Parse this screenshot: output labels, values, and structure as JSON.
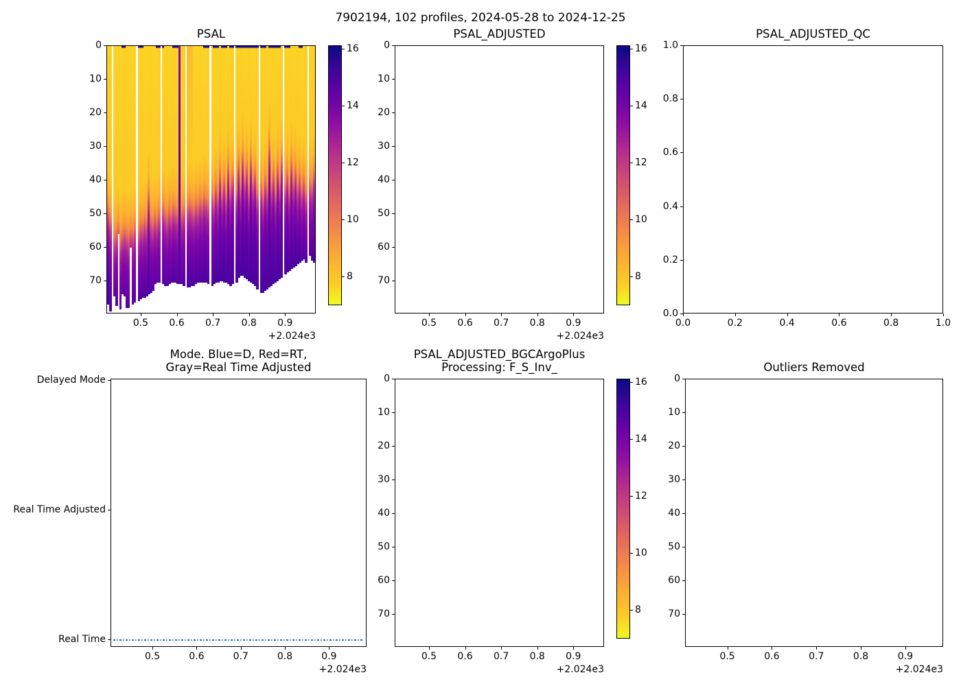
{
  "suptitle": "7902194, 102 profiles, 2024-05-28 to 2024-12-25",
  "palette": {
    "plasma_top_to_bottom": [
      "#0d0887",
      "#41049d",
      "#6a00a8",
      "#8f0da4",
      "#b12a90",
      "#cc4778",
      "#e16462",
      "#f2844b",
      "#fca636",
      "#fcce25",
      "#f0f921"
    ],
    "surface_yellow": "#fcd225",
    "surface_yellow_alt": "#fbd026",
    "orange_surface": "#fcbb31",
    "dark_surface_cap": "#1e0b8c",
    "deep_purple": "#4b03a0",
    "anomaly_gradient": [
      "#8a0ba5",
      "#6a00a8",
      "#52019f"
    ],
    "mode_line_blue": "#1f77b4"
  },
  "chart_data": [
    {
      "id": "psal",
      "type": "heatmap",
      "title": "PSAL",
      "x_range": [
        2024.405,
        2024.985
      ],
      "x_ticks": {
        "values": [
          2024.5,
          2024.6,
          2024.7,
          2024.8,
          2024.9
        ],
        "labels": [
          "0.5",
          "0.6",
          "0.7",
          "0.8",
          "0.9"
        ]
      },
      "x_offset_label": "+2.024e3",
      "y_range": [
        0,
        79.9
      ],
      "y_ticks": {
        "values": [
          0,
          10,
          20,
          30,
          40,
          50,
          60,
          70
        ],
        "labels": [
          "0",
          "10",
          "20",
          "30",
          "40",
          "50",
          "60",
          "70"
        ]
      },
      "colorbar": {
        "vmin": 7.0,
        "vmax": 16.12,
        "tick_values": [
          8,
          10,
          12,
          14,
          16
        ],
        "tick_labels": [
          "8",
          "10",
          "12",
          "14",
          "16"
        ]
      },
      "heatmap": {
        "n_profiles": 102,
        "surface_value_psu": 7.4,
        "deep_value_psu": 14.0,
        "anomaly_value_psu": 13.5,
        "gap_columns": [
          2,
          14,
          26,
          38,
          50,
          62,
          74,
          86,
          98
        ],
        "anomaly_columns": [
          35
        ],
        "orange_columns": [
          39,
          40,
          41
        ],
        "dark_surface_cap_columns": [
          7,
          8,
          15,
          16,
          17,
          24,
          25,
          27,
          32,
          33,
          34,
          47,
          48,
          49,
          52,
          53,
          54,
          56,
          57,
          58,
          60,
          61,
          63,
          64,
          65,
          66,
          67,
          68,
          69,
          70,
          71,
          72,
          73,
          75,
          76,
          77,
          79,
          80,
          81,
          82,
          83,
          84,
          87,
          88,
          89,
          94,
          95
        ],
        "bottom_depths": [
          77,
          79,
          null,
          74.5,
          77.5,
          56,
          78.5,
          74,
          74.5,
          78,
          78,
          60,
          77,
          76.5,
          null,
          76,
          75.5,
          75,
          75,
          74.5,
          74,
          73.5,
          73,
          71,
          70.5,
          70.5,
          null,
          71,
          71.5,
          71.5,
          71,
          70.5,
          70.5,
          70.5,
          71,
          71,
          71,
          71.5,
          null,
          72,
          72,
          71.5,
          71.5,
          71,
          70.5,
          70.5,
          70.5,
          70.5,
          70.5,
          71,
          null,
          71.5,
          71,
          70.5,
          70.5,
          70,
          70,
          70.5,
          70.5,
          71,
          71.5,
          71,
          null,
          70.5,
          69,
          68.5,
          68.5,
          69,
          69.5,
          70,
          70.5,
          71,
          71.5,
          72.5,
          null,
          73.5,
          73.5,
          73,
          72.5,
          72,
          71.5,
          71,
          70.5,
          70,
          69.5,
          69,
          null,
          68,
          67.5,
          67,
          66.5,
          66,
          65.5,
          65,
          64.5,
          64,
          63.5,
          64.5,
          null,
          62.5,
          64,
          64.5
        ],
        "transition_depths": [
          49,
          52,
          null,
          57,
          56,
          54,
          58,
          56,
          55,
          56,
          57,
          55,
          56,
          54,
          null,
          55,
          53,
          54,
          52,
          53,
          44,
          52,
          53,
          51,
          52,
          50,
          null,
          48,
          50,
          51,
          49,
          50,
          48,
          49,
          50,
          null,
          50,
          49,
          null,
          48,
          47,
          48,
          49,
          47,
          48,
          46,
          47,
          45,
          46,
          47,
          null,
          44,
          46,
          42,
          45,
          38,
          44,
          40,
          45,
          36,
          43,
          39,
          null,
          44,
          35,
          42,
          33,
          40,
          36,
          43,
          34,
          41,
          38,
          44,
          null,
          42,
          45,
          40,
          43,
          30,
          42,
          38,
          44,
          36,
          41,
          34,
          null,
          42,
          38,
          43,
          35,
          41,
          37,
          42,
          39,
          43,
          40,
          44,
          null,
          41,
          42,
          38
        ]
      }
    },
    {
      "id": "psal_adjusted",
      "type": "empty",
      "title": "PSAL_ADJUSTED",
      "x_range": [
        2024.405,
        2024.985
      ],
      "x_ticks": {
        "values": [
          2024.5,
          2024.6,
          2024.7,
          2024.8,
          2024.9
        ],
        "labels": [
          "0.5",
          "0.6",
          "0.7",
          "0.8",
          "0.9"
        ]
      },
      "x_offset_label": "+2.024e3",
      "y_range": [
        0,
        79.9
      ],
      "y_ticks": {
        "values": [
          0,
          10,
          20,
          30,
          40,
          50,
          60,
          70
        ],
        "labels": [
          "0",
          "10",
          "20",
          "30",
          "40",
          "50",
          "60",
          "70"
        ]
      },
      "colorbar": {
        "vmin": 7.0,
        "vmax": 16.12,
        "tick_values": [
          8,
          10,
          12,
          14,
          16
        ],
        "tick_labels": [
          "8",
          "10",
          "12",
          "14",
          "16"
        ]
      }
    },
    {
      "id": "psal_adjusted_qc",
      "type": "empty",
      "title": "PSAL_ADJUSTED_QC",
      "x_range": [
        0,
        1
      ],
      "x_ticks": {
        "values": [
          0,
          0.2,
          0.4,
          0.6,
          0.8,
          1.0
        ],
        "labels": [
          "0.0",
          "0.2",
          "0.4",
          "0.6",
          "0.8",
          "1.0"
        ]
      },
      "y_range": [
        1,
        0
      ],
      "y_ticks": {
        "values": [
          1.0,
          0.8,
          0.6,
          0.4,
          0.2,
          0.0
        ],
        "labels": [
          "1.0",
          "0.8",
          "0.6",
          "0.4",
          "0.2",
          "0.0"
        ]
      }
    },
    {
      "id": "mode",
      "type": "line",
      "title": "Mode. Blue=D, Red=RT,\nGray=Real Time Adjusted",
      "x_range": [
        2024.405,
        2024.985
      ],
      "x_ticks": {
        "values": [
          2024.5,
          2024.6,
          2024.7,
          2024.8,
          2024.9
        ],
        "labels": [
          "0.5",
          "0.6",
          "0.7",
          "0.8",
          "0.9"
        ]
      },
      "x_offset_label": "+2.024e3",
      "y_range": [
        2.0106,
        -0.058
      ],
      "y_ticks": {
        "values": [
          2,
          1,
          0
        ],
        "labels": [
          "Delayed Mode",
          "Real Time Adjusted",
          "Real Time"
        ]
      },
      "line": {
        "y_value": 0,
        "at_category": "Real Time",
        "color": "#1f77b4",
        "style": "dash-dot",
        "spans_full_width": true
      }
    },
    {
      "id": "bgc",
      "type": "empty",
      "title": "PSAL_ADJUSTED_BGCArgoPlus\nProcessing: F_S_Inv_",
      "x_range": [
        2024.405,
        2024.985
      ],
      "x_ticks": {
        "values": [
          2024.5,
          2024.6,
          2024.7,
          2024.8,
          2024.9
        ],
        "labels": [
          "0.5",
          "0.6",
          "0.7",
          "0.8",
          "0.9"
        ]
      },
      "x_offset_label": "+2.024e3",
      "y_range": [
        0,
        79.9
      ],
      "y_ticks": {
        "values": [
          0,
          10,
          20,
          30,
          40,
          50,
          60,
          70
        ],
        "labels": [
          "0",
          "10",
          "20",
          "30",
          "40",
          "50",
          "60",
          "70"
        ]
      },
      "colorbar": {
        "vmin": 7.0,
        "vmax": 16.12,
        "tick_values": [
          8,
          10,
          12,
          14,
          16
        ],
        "tick_labels": [
          "8",
          "10",
          "12",
          "14",
          "16"
        ]
      }
    },
    {
      "id": "outliers",
      "type": "empty",
      "title": "Outliers Removed",
      "x_range": [
        2024.405,
        2024.985
      ],
      "x_ticks": {
        "values": [
          2024.5,
          2024.6,
          2024.7,
          2024.8,
          2024.9
        ],
        "labels": [
          "0.5",
          "0.6",
          "0.7",
          "0.8",
          "0.9"
        ]
      },
      "x_offset_label": "+2.024e3",
      "y_range": [
        0,
        79.9
      ],
      "y_ticks": {
        "values": [
          0,
          10,
          20,
          30,
          40,
          50,
          60,
          70
        ],
        "labels": [
          "0",
          "10",
          "20",
          "30",
          "40",
          "50",
          "60",
          "70"
        ]
      }
    }
  ]
}
